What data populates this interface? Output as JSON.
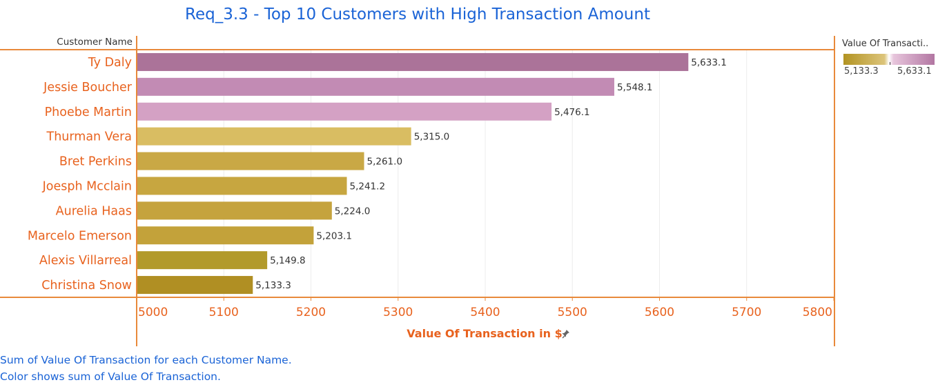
{
  "title": "Req_3.3 - Top 10 Customers with High Transaction Amount",
  "footer": {
    "line1": "Sum of Value Of Transaction for each Customer Name.",
    "line2": "Color shows sum of Value Of Transaction."
  },
  "legend": {
    "title": "Value Of Transacti..",
    "min_label": "5,133.3",
    "max_label": "5,633.1",
    "colors": {
      "low": "#b29322",
      "mid_low": "#dcc47a",
      "mid_high": "#e7c5dc",
      "high": "#b276a2"
    }
  },
  "colors": {
    "axis": "#e8893a",
    "name_text": "#e8621e",
    "title_text": "#1a63d6"
  },
  "pin_icon": "pin-icon",
  "chart_data": {
    "type": "bar",
    "orientation": "horizontal",
    "row_header": "Customer Name",
    "xlabel": "Value Of Transaction in $",
    "xlim": [
      5000,
      5800
    ],
    "xticks": [
      "5000",
      "5100",
      "5200",
      "5300",
      "5400",
      "5500",
      "5600",
      "5700",
      "5800"
    ],
    "categories": [
      "Ty Daly",
      "Jessie Boucher",
      "Phoebe Martin",
      "Thurman Vera",
      "Bret Perkins",
      "Joesph Mcclain",
      "Aurelia Haas",
      "Marcelo Emerson",
      "Alexis Villarreal",
      "Christina Snow"
    ],
    "values": [
      5633.1,
      5548.1,
      5476.1,
      5315.0,
      5261.0,
      5241.2,
      5224.0,
      5203.1,
      5149.8,
      5133.3
    ],
    "value_labels": [
      "5,633.1",
      "5,548.1",
      "5,476.1",
      "5,315.0",
      "5,261.0",
      "5,241.2",
      "5,224.0",
      "5,203.1",
      "5,149.8",
      "5,133.3"
    ],
    "bar_colors": [
      "#ab7399",
      "#c28bb4",
      "#d4a1c4",
      "#d9bd62",
      "#c9a845",
      "#c7a640",
      "#c5a33e",
      "#c3a23a",
      "#b29a2b",
      "#b08f23"
    ],
    "grid": true
  }
}
